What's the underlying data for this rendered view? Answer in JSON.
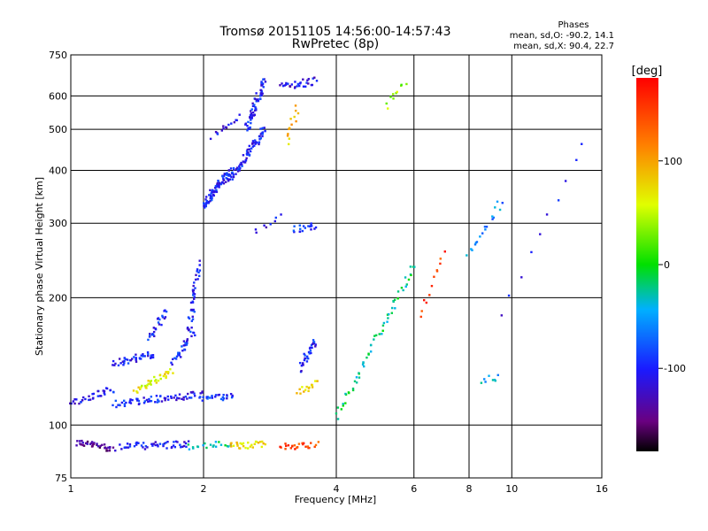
{
  "chart_data": {
    "type": "scatter",
    "title": "Tromsø 20151105 14:56:00-14:57:43",
    "subtitle": "RwPretec (8p)",
    "xlabel": "Frequency [MHz]",
    "ylabel": "Stationary phase Virtual Height [km]",
    "x_scale": "log",
    "y_scale": "log",
    "xlim": [
      1,
      16
    ],
    "ylim": [
      75,
      750
    ],
    "x_ticks": [
      1,
      2,
      4,
      6,
      8,
      10,
      16
    ],
    "y_ticks": [
      75,
      100,
      200,
      300,
      400,
      500,
      600,
      750
    ],
    "grid": true,
    "colorbar": {
      "label": "[deg]",
      "range": [
        -180,
        180
      ],
      "ticks": [
        -100,
        0,
        100
      ],
      "colormap": "rainbow"
    },
    "annotations": {
      "header": "Phases",
      "line1": "mean, sd,O: -90.2, 14.1",
      "line2": "mean, sd,X:  90.4, 22.7"
    },
    "clusters": [
      {
        "x": [
          1.03,
          1.25
        ],
        "y": [
          91,
          88
        ],
        "phase": -140,
        "n": 40
      },
      {
        "x": [
          1.3,
          1.85
        ],
        "y": [
          89,
          90
        ],
        "phase": -105,
        "n": 50
      },
      {
        "x": [
          1.85,
          2.3
        ],
        "y": [
          89,
          90
        ],
        "phase": -30,
        "n": 20
      },
      {
        "x": [
          2.3,
          2.75
        ],
        "y": [
          89,
          90
        ],
        "phase": 80,
        "n": 28
      },
      {
        "x": [
          3.0,
          3.6
        ],
        "y": [
          89,
          90
        ],
        "phase": 150,
        "n": 25
      },
      {
        "x": [
          1.0,
          1.25
        ],
        "y": [
          112,
          122
        ],
        "phase": -105,
        "n": 35
      },
      {
        "x": [
          1.25,
          2.0
        ],
        "y": [
          112,
          118
        ],
        "phase": -100,
        "n": 70
      },
      {
        "x": [
          2.0,
          2.35
        ],
        "y": [
          116,
          117
        ],
        "phase": -95,
        "n": 25
      },
      {
        "x": [
          1.25,
          1.55
        ],
        "y": [
          140,
          147
        ],
        "phase": -100,
        "n": 40
      },
      {
        "x": [
          1.4,
          1.7
        ],
        "y": [
          120,
          135
        ],
        "phase": 70,
        "n": 35
      },
      {
        "x": [
          1.5,
          1.65
        ],
        "y": [
          160,
          185
        ],
        "phase": -100,
        "n": 25
      },
      {
        "x": [
          1.7,
          1.9
        ],
        "y": [
          140,
          165
        ],
        "phase": -95,
        "n": 30
      },
      {
        "x": [
          1.85,
          1.95
        ],
        "y": [
          165,
          240
        ],
        "phase": -100,
        "n": 40
      },
      {
        "x": [
          2.0,
          2.3
        ],
        "y": [
          330,
          400
        ],
        "phase": -100,
        "n": 80
      },
      {
        "x": [
          2.3,
          2.75
        ],
        "y": [
          380,
          500
        ],
        "phase": -100,
        "n": 70
      },
      {
        "x": [
          2.5,
          2.75
        ],
        "y": [
          500,
          650
        ],
        "phase": -100,
        "n": 60
      },
      {
        "x": [
          2.1,
          2.4
        ],
        "y": [
          480,
          540
        ],
        "phase": -110,
        "n": 15
      },
      {
        "x": [
          3.0,
          3.6
        ],
        "y": [
          630,
          650
        ],
        "phase": -110,
        "n": 30
      },
      {
        "x": [
          3.1,
          3.25
        ],
        "y": [
          470,
          560
        ],
        "phase": 90,
        "n": 14
      },
      {
        "x": [
          3.2,
          3.6
        ],
        "y": [
          290,
          295
        ],
        "phase": -90,
        "n": 18
      },
      {
        "x": [
          3.3,
          3.6
        ],
        "y": [
          135,
          160
        ],
        "phase": -100,
        "n": 30
      },
      {
        "x": [
          3.3,
          3.6
        ],
        "y": [
          120,
          126
        ],
        "phase": 80,
        "n": 15
      },
      {
        "x": [
          2.6,
          3.0
        ],
        "y": [
          285,
          310
        ],
        "phase": -110,
        "n": 8
      },
      {
        "x": [
          4.0,
          6.0
        ],
        "y": [
          105,
          240
        ],
        "phase": -20,
        "n": 60
      },
      {
        "x": [
          5.2,
          5.7
        ],
        "y": [
          570,
          650
        ],
        "phase": 40,
        "n": 10
      },
      {
        "x": [
          6.2,
          7.0
        ],
        "y": [
          180,
          260
        ],
        "phase": 150,
        "n": 12
      },
      {
        "x": [
          8.0,
          9.5
        ],
        "y": [
          250,
          340
        ],
        "phase": -60,
        "n": 18
      },
      {
        "x": [
          8.5,
          9.3
        ],
        "y": [
          128,
          130
        ],
        "phase": -40,
        "n": 8
      },
      {
        "x": [
          9.5,
          14.5
        ],
        "y": [
          185,
          470
        ],
        "phase": -100,
        "n": 10
      }
    ]
  }
}
